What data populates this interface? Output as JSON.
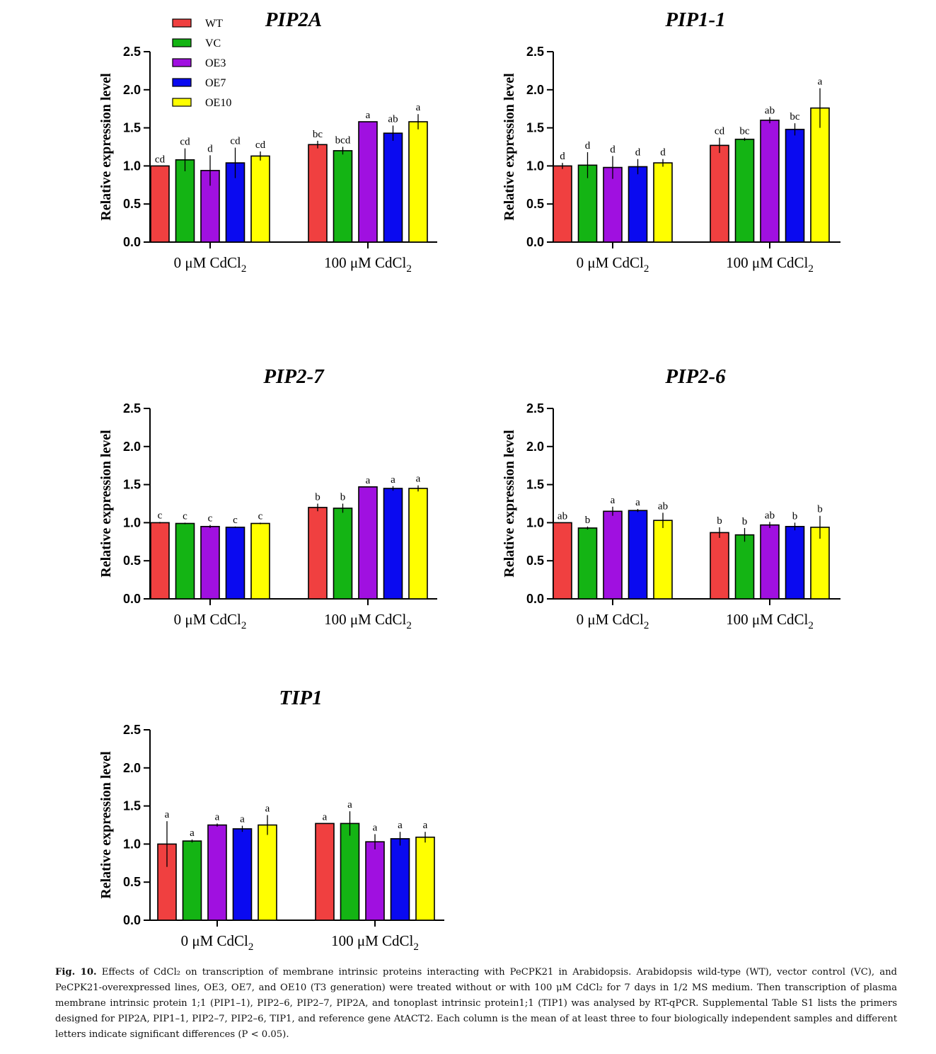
{
  "chart_data": [
    {
      "type": "bar",
      "title": "PIP2A",
      "ylabel": "Relative expression level",
      "ylim": [
        0,
        2.5
      ],
      "yticks": [
        "0.0",
        "0.5",
        "1.0",
        "1.5",
        "2.0",
        "2.5"
      ],
      "categories": [
        "0 μM CdCl",
        "100 μM CdCl"
      ],
      "category_subscript": "2",
      "series": [
        {
          "name": "WT",
          "color": "#f04040",
          "values": [
            1.0,
            1.28
          ],
          "errors": [
            0.0,
            0.05
          ],
          "letters": [
            "cd",
            "bc"
          ]
        },
        {
          "name": "VC",
          "color": "#14b414",
          "values": [
            1.08,
            1.2
          ],
          "errors": [
            0.15,
            0.05
          ],
          "letters": [
            "cd",
            "bcd"
          ]
        },
        {
          "name": "OE3",
          "color": "#a010e0",
          "values": [
            0.94,
            1.58
          ],
          "errors": [
            0.2,
            0.0
          ],
          "letters": [
            "d",
            "a"
          ]
        },
        {
          "name": "OE7",
          "color": "#0a0af0",
          "values": [
            1.04,
            1.43
          ],
          "errors": [
            0.2,
            0.1
          ],
          "letters": [
            "cd",
            "ab"
          ]
        },
        {
          "name": "OE10",
          "color": "#ffff00",
          "values": [
            1.13,
            1.58
          ],
          "errors": [
            0.06,
            0.1
          ],
          "letters": [
            "cd",
            "a"
          ]
        }
      ],
      "legend": "top-left"
    },
    {
      "type": "bar",
      "title": "PIP1-1",
      "ylabel": "Relative expression level",
      "ylim": [
        0,
        2.5
      ],
      "yticks": [
        "0.0",
        "0.5",
        "1.0",
        "1.5",
        "2.0",
        "2.5"
      ],
      "categories": [
        "0 μM CdCl",
        "100 μM CdCl"
      ],
      "category_subscript": "2",
      "series": [
        {
          "name": "WT",
          "color": "#f04040",
          "values": [
            1.0,
            1.27
          ],
          "errors": [
            0.04,
            0.1
          ],
          "letters": [
            "d",
            "cd"
          ]
        },
        {
          "name": "VC",
          "color": "#14b414",
          "values": [
            1.01,
            1.35
          ],
          "errors": [
            0.17,
            0.02
          ],
          "letters": [
            "d",
            "bc"
          ]
        },
        {
          "name": "OE3",
          "color": "#a010e0",
          "values": [
            0.98,
            1.6
          ],
          "errors": [
            0.15,
            0.04
          ],
          "letters": [
            "d",
            "ab"
          ]
        },
        {
          "name": "OE7",
          "color": "#0a0af0",
          "values": [
            0.99,
            1.48
          ],
          "errors": [
            0.1,
            0.08
          ],
          "letters": [
            "d",
            "bc"
          ]
        },
        {
          "name": "OE10",
          "color": "#ffff00",
          "values": [
            1.04,
            1.76
          ],
          "errors": [
            0.05,
            0.26
          ],
          "letters": [
            "d",
            "a"
          ]
        }
      ]
    },
    {
      "type": "bar",
      "title": "PIP2-7",
      "ylabel": "Relative expression level",
      "ylim": [
        0,
        2.5
      ],
      "yticks": [
        "0.0",
        "0.5",
        "1.0",
        "1.5",
        "2.0",
        "2.5"
      ],
      "categories": [
        "0 μM CdCl",
        "100 μM CdCl"
      ],
      "category_subscript": "2",
      "series": [
        {
          "name": "WT",
          "color": "#f04040",
          "values": [
            1.0,
            1.2
          ],
          "errors": [
            0.01,
            0.05
          ],
          "letters": [
            "c",
            "b"
          ]
        },
        {
          "name": "VC",
          "color": "#14b414",
          "values": [
            0.99,
            1.19
          ],
          "errors": [
            0.01,
            0.06
          ],
          "letters": [
            "c",
            "b"
          ]
        },
        {
          "name": "OE3",
          "color": "#a010e0",
          "values": [
            0.95,
            1.47
          ],
          "errors": [
            0.02,
            0.0
          ],
          "letters": [
            "c",
            "a"
          ]
        },
        {
          "name": "OE7",
          "color": "#0a0af0",
          "values": [
            0.94,
            1.45
          ],
          "errors": [
            0.01,
            0.03
          ],
          "letters": [
            "c",
            "a"
          ]
        },
        {
          "name": "OE10",
          "color": "#ffff00",
          "values": [
            0.99,
            1.45
          ],
          "errors": [
            0.01,
            0.04
          ],
          "letters": [
            "c",
            "a"
          ]
        }
      ]
    },
    {
      "type": "bar",
      "title": "PIP2-6",
      "ylabel": "Relative expression level",
      "ylim": [
        0,
        2.5
      ],
      "yticks": [
        "0.0",
        "0.5",
        "1.0",
        "1.5",
        "2.0",
        "2.5"
      ],
      "categories": [
        "0 μM CdCl",
        "100 μM CdCl"
      ],
      "category_subscript": "2",
      "series": [
        {
          "name": "WT",
          "color": "#f04040",
          "values": [
            1.0,
            0.87
          ],
          "errors": [
            0.0,
            0.07
          ],
          "letters": [
            "ab",
            "b"
          ]
        },
        {
          "name": "VC",
          "color": "#14b414",
          "values": [
            0.93,
            0.84
          ],
          "errors": [
            0.02,
            0.09
          ],
          "letters": [
            "b",
            "b"
          ]
        },
        {
          "name": "OE3",
          "color": "#a010e0",
          "values": [
            1.15,
            0.97
          ],
          "errors": [
            0.06,
            0.04
          ],
          "letters": [
            "a",
            "ab"
          ]
        },
        {
          "name": "OE7",
          "color": "#0a0af0",
          "values": [
            1.16,
            0.95
          ],
          "errors": [
            0.02,
            0.05
          ],
          "letters": [
            "a",
            "b"
          ]
        },
        {
          "name": "OE10",
          "color": "#ffff00",
          "values": [
            1.03,
            0.94
          ],
          "errors": [
            0.1,
            0.15
          ],
          "letters": [
            "ab",
            "b"
          ]
        }
      ]
    },
    {
      "type": "bar",
      "title": "TIP1",
      "ylabel": "Relative expression level",
      "ylim": [
        0,
        2.5
      ],
      "yticks": [
        "0.0",
        "0.5",
        "1.0",
        "1.5",
        "2.0",
        "2.5"
      ],
      "categories": [
        "0 μM CdCl",
        "100 μM CdCl"
      ],
      "category_subscript": "2",
      "series": [
        {
          "name": "WT",
          "color": "#f04040",
          "values": [
            1.0,
            1.27
          ],
          "errors": [
            0.3,
            0.0
          ],
          "letters": [
            "a",
            "a"
          ]
        },
        {
          "name": "VC",
          "color": "#14b414",
          "values": [
            1.04,
            1.27
          ],
          "errors": [
            0.02,
            0.16
          ],
          "letters": [
            "a",
            "a"
          ]
        },
        {
          "name": "OE3",
          "color": "#a010e0",
          "values": [
            1.25,
            1.03
          ],
          "errors": [
            0.02,
            0.1
          ],
          "letters": [
            "a",
            "a"
          ]
        },
        {
          "name": "OE7",
          "color": "#0a0af0",
          "values": [
            1.2,
            1.07
          ],
          "errors": [
            0.04,
            0.09
          ],
          "letters": [
            "a",
            "a"
          ]
        },
        {
          "name": "OE10",
          "color": "#ffff00",
          "values": [
            1.25,
            1.09
          ],
          "errors": [
            0.13,
            0.07
          ],
          "letters": [
            "a",
            "a"
          ]
        }
      ]
    }
  ],
  "caption": {
    "label": "Fig. 10.",
    "text": "Effects of CdCl₂ on transcription of membrane intrinsic proteins interacting with PeCPK21 in Arabidopsis. Arabidopsis wild-type (WT), vector control (VC), and PeCPK21-overexpressed lines, OE3, OE7, and OE10 (T3 generation) were treated without or with 100 μM CdCl₂ for 7 days in 1/2 MS medium. Then transcription of plasma membrane intrinsic protein 1;1 (PIP1–1), PIP2–6, PIP2–7, PIP2A, and tonoplast intrinsic protein1;1 (TIP1) was analysed by RT-qPCR. Supplemental Table S1 lists the primers designed for PIP2A, PIP1–1, PIP2–7, PIP2–6, TIP1, and reference gene AtACT2. Each column is the mean of at least three to four biologically independent samples and different letters indicate significant differences (P < 0.05)."
  }
}
